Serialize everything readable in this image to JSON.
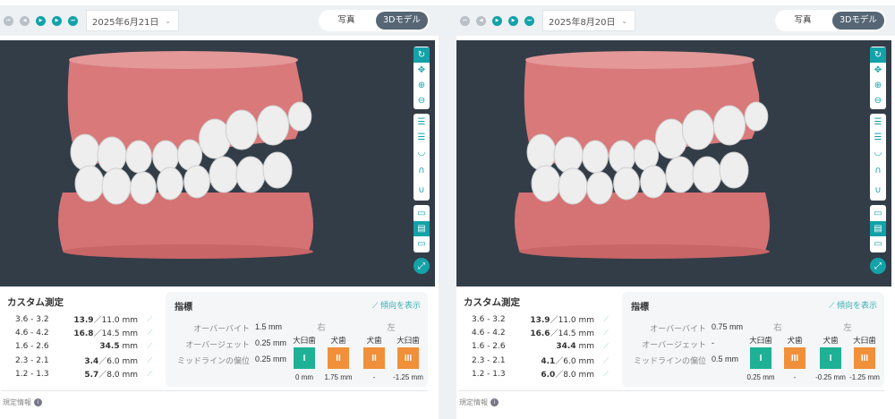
{
  "colors": {
    "accent": "#13a2a8",
    "green": "#1fb196",
    "orange": "#f0903a",
    "viewport": "#323d48"
  },
  "panels": [
    {
      "date": "2025年6月21日",
      "toggle": {
        "photo": "写真",
        "model": "3Dモデル",
        "active": "model"
      },
      "custom": {
        "title": "カスタム測定",
        "rows": [
          {
            "k": "3.6 - 3.2",
            "a": "13.9",
            "b": "／11.0 mm"
          },
          {
            "k": "4.6 - 4.2",
            "a": "16.8",
            "b": "／14.5 mm"
          },
          {
            "k": "1.6 - 2.6",
            "a": "34.5",
            "b": " mm"
          },
          {
            "k": "2.3 - 2.1",
            "a": "3.4",
            "b": "／6.0 mm"
          },
          {
            "k": "1.2 - 1.3",
            "a": "5.7",
            "b": "／8.0 mm"
          }
        ]
      },
      "index": {
        "title": "指標",
        "trend": "傾向を表示",
        "metrics": [
          {
            "l": "オーバーバイト",
            "v": "1.5 mm"
          },
          {
            "l": "オーバージェット",
            "v": "0.25 mm"
          },
          {
            "l": "ミッドラインの偏位",
            "v": "0.25 mm"
          }
        ],
        "right": "右",
        "left": "左",
        "teeth": [
          {
            "h": "大臼歯",
            "g": "I",
            "c": "green",
            "v": "0 mm"
          },
          {
            "h": "犬歯",
            "g": "II",
            "c": "orange",
            "v": "1.75 mm"
          },
          {
            "h": "犬歯",
            "g": "II",
            "c": "orange",
            "v": "-"
          },
          {
            "h": "大臼歯",
            "g": "III",
            "c": "orange",
            "v": "-1.25 mm"
          }
        ]
      },
      "footer": "規定情報"
    },
    {
      "date": "2025年8月20日",
      "toggle": {
        "photo": "写真",
        "model": "3Dモデル",
        "active": "model"
      },
      "custom": {
        "title": "カスタム測定",
        "rows": [
          {
            "k": "3.6 - 3.2",
            "a": "13.9",
            "b": "／11.0 mm"
          },
          {
            "k": "4.6 - 4.2",
            "a": "16.6",
            "b": "／14.5 mm"
          },
          {
            "k": "1.6 - 2.6",
            "a": "34.4",
            "b": " mm"
          },
          {
            "k": "2.3 - 2.1",
            "a": "4.1",
            "b": "／6.0 mm"
          },
          {
            "k": "1.2 - 1.3",
            "a": "6.0",
            "b": "／8.0 mm"
          }
        ]
      },
      "index": {
        "title": "指標",
        "trend": "傾向を表示",
        "metrics": [
          {
            "l": "オーバーバイト",
            "v": "0.75 mm"
          },
          {
            "l": "オーバージェット",
            "v": "-"
          },
          {
            "l": "ミッドラインの偏位",
            "v": "0.5 mm"
          }
        ],
        "right": "右",
        "left": "左",
        "teeth": [
          {
            "h": "大臼歯",
            "g": "I",
            "c": "green",
            "v": "0.25 mm"
          },
          {
            "h": "犬歯",
            "g": "III",
            "c": "orange",
            "v": "-"
          },
          {
            "h": "犬歯",
            "g": "I",
            "c": "green",
            "v": "-0.25 mm"
          },
          {
            "h": "大臼歯",
            "g": "III",
            "c": "orange",
            "v": "-1.25 mm"
          }
        ]
      },
      "footer": "規定情報"
    }
  ]
}
